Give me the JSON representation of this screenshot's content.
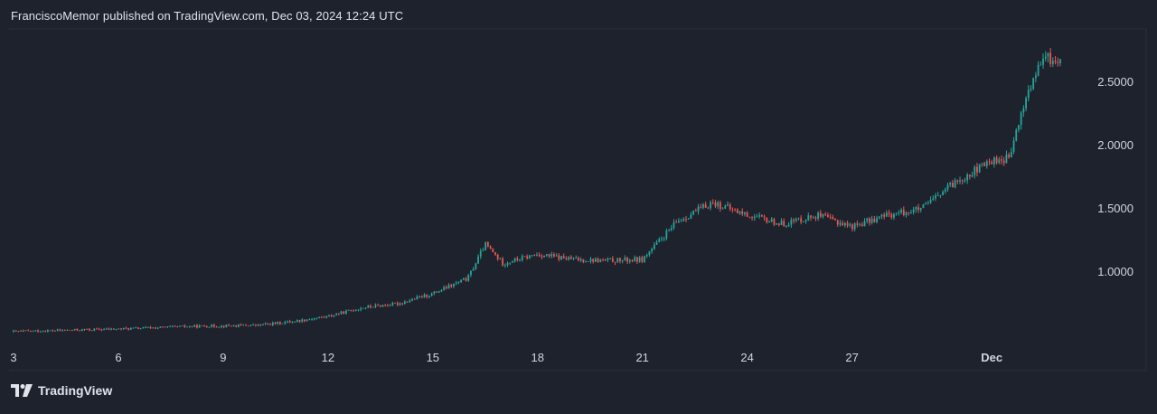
{
  "header": {
    "attribution": "FranciscoMemor published on TradingView.com, Dec 03, 2024 12:24 UTC"
  },
  "footer": {
    "brand": "TradingView"
  },
  "colors": {
    "background": "#1e222d",
    "up": "#26a69a",
    "down": "#ef5350",
    "axis_text": "#d1d4dc",
    "border": "#2a2e39"
  },
  "chart_data": {
    "type": "candlestick",
    "title": "",
    "xlabel": "",
    "ylabel": "",
    "ylim": [
      0.5,
      2.9
    ],
    "y_ticks": [
      "1.0000",
      "1.5000",
      "2.0000",
      "2.5000"
    ],
    "x_ticks": [
      "3",
      "6",
      "9",
      "12",
      "15",
      "18",
      "21",
      "24",
      "27",
      "Dec"
    ],
    "grid": false,
    "series": [
      {
        "approx_close_path": [
          {
            "x": "Nov 3",
            "y": 0.53
          },
          {
            "x": "Nov 6",
            "y": 0.55
          },
          {
            "x": "Nov 8",
            "y": 0.57
          },
          {
            "x": "Nov 10",
            "y": 0.58
          },
          {
            "x": "Nov 11",
            "y": 0.61
          },
          {
            "x": "Nov 12",
            "y": 0.65
          },
          {
            "x": "Nov 13",
            "y": 0.72
          },
          {
            "x": "Nov 14",
            "y": 0.75
          },
          {
            "x": "Nov 15",
            "y": 0.83
          },
          {
            "x": "Nov 16",
            "y": 0.95
          },
          {
            "x": "Nov 16.5",
            "y": 1.22
          },
          {
            "x": "Nov 17",
            "y": 1.07
          },
          {
            "x": "Nov 18",
            "y": 1.14
          },
          {
            "x": "Nov 19",
            "y": 1.1
          },
          {
            "x": "Nov 20",
            "y": 1.09
          },
          {
            "x": "Nov 21",
            "y": 1.1
          },
          {
            "x": "Nov 22",
            "y": 1.4
          },
          {
            "x": "Nov 23",
            "y": 1.55
          },
          {
            "x": "Nov 24",
            "y": 1.45
          },
          {
            "x": "Nov 25",
            "y": 1.38
          },
          {
            "x": "Nov 26",
            "y": 1.45
          },
          {
            "x": "Nov 27",
            "y": 1.36
          },
          {
            "x": "Nov 28",
            "y": 1.45
          },
          {
            "x": "Nov 29",
            "y": 1.5
          },
          {
            "x": "Nov 30",
            "y": 1.72
          },
          {
            "x": "Dec 1",
            "y": 1.88
          },
          {
            "x": "Dec 1.5",
            "y": 1.9
          },
          {
            "x": "Dec 2",
            "y": 2.4
          },
          {
            "x": "Dec 2.5",
            "y": 2.7
          },
          {
            "x": "Dec 3",
            "y": 2.65
          }
        ]
      }
    ]
  }
}
